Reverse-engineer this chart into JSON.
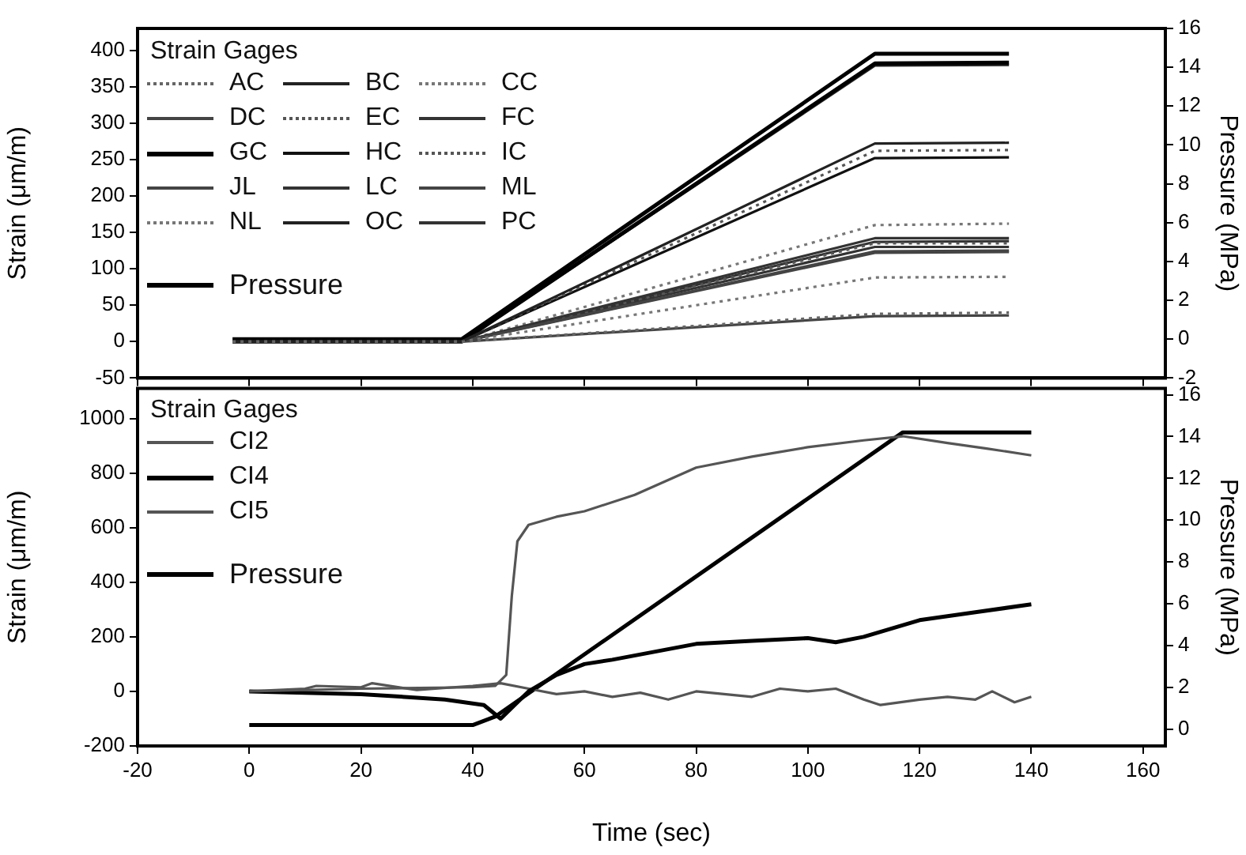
{
  "chart_data": [
    {
      "type": "line",
      "ylabel": "Strain (μm/m)",
      "y2label": "Pressure (MPa)",
      "legend_title": "Strain Gages",
      "legend": "top left",
      "grid": false,
      "tick_labels": "y",
      "xlim": [
        -20,
        164
      ],
      "xticks": [
        -20,
        0,
        20,
        40,
        60,
        80,
        100,
        120,
        140,
        160
      ],
      "ylim": [
        -50,
        430
      ],
      "yticks": [
        -50,
        0,
        50,
        100,
        150,
        200,
        250,
        300,
        350,
        400
      ],
      "y2lim": [
        -2,
        16
      ],
      "y2ticks": [
        -2,
        0,
        2,
        4,
        6,
        8,
        10,
        12,
        14,
        16
      ],
      "x": [
        -3,
        38,
        112,
        136
      ],
      "series": [
        {
          "name": "AC",
          "color": "#666666",
          "line_style": "dotted",
          "values": [
            0,
            0,
            38,
            40
          ]
        },
        {
          "name": "BC",
          "color": "#222222",
          "line_style": "solid",
          "values": [
            0,
            0,
            272,
            273
          ]
        },
        {
          "name": "CC",
          "color": "#777777",
          "line_style": "dotted",
          "values": [
            0,
            0,
            88,
            89
          ]
        },
        {
          "name": "DC",
          "color": "#444444",
          "line_style": "solid",
          "values": [
            0,
            0,
            124,
            125
          ]
        },
        {
          "name": "EC",
          "color": "#555555",
          "line_style": "dotted",
          "values": [
            0,
            0,
            262,
            263
          ]
        },
        {
          "name": "FC",
          "color": "#333333",
          "line_style": "solid",
          "values": [
            0,
            0,
            142,
            142
          ]
        },
        {
          "name": "GC",
          "color": "#000000",
          "line_style": "solid",
          "values": [
            0,
            0,
            382,
            383
          ]
        },
        {
          "name": "HC",
          "color": "#111111",
          "line_style": "solid",
          "values": [
            0,
            0,
            252,
            253
          ]
        },
        {
          "name": "IC",
          "color": "#555555",
          "line_style": "dotted",
          "values": [
            0,
            0,
            135,
            135
          ]
        },
        {
          "name": "JL",
          "color": "#444444",
          "line_style": "solid",
          "values": [
            0,
            0,
            122,
            123
          ]
        },
        {
          "name": "LC",
          "color": "#333333",
          "line_style": "solid",
          "values": [
            0,
            0,
            130,
            130
          ]
        },
        {
          "name": "ML",
          "color": "#444444",
          "line_style": "solid",
          "values": [
            0,
            0,
            35,
            36
          ]
        },
        {
          "name": "NL",
          "color": "#777777",
          "line_style": "dotted",
          "values": [
            0,
            0,
            160,
            162
          ]
        },
        {
          "name": "OC",
          "color": "#222222",
          "line_style": "solid",
          "values": [
            0,
            0,
            379,
            380
          ]
        },
        {
          "name": "PC",
          "color": "#333333",
          "line_style": "solid",
          "values": [
            0,
            0,
            137,
            138
          ]
        },
        {
          "name": "Pressure",
          "color": "#000000",
          "line_style": "solid",
          "axis": "y2",
          "values": [
            0,
            0,
            14.7,
            14.7
          ]
        }
      ]
    },
    {
      "type": "line",
      "xlabel": "Time (sec)",
      "ylabel": "Strain (μm/m)",
      "y2label": "Pressure (MPa)",
      "legend_title": "Strain Gages",
      "legend": "top left",
      "grid": false,
      "xlim": [
        -20,
        164
      ],
      "xticks": [
        -20,
        0,
        20,
        40,
        60,
        80,
        100,
        120,
        140,
        160
      ],
      "ylim": [
        -200,
        1110
      ],
      "yticks": [
        -200,
        0,
        200,
        400,
        600,
        800,
        1000
      ],
      "y2lim": [
        -0.8,
        16.3
      ],
      "y2ticks": [
        0,
        2,
        4,
        6,
        8,
        10,
        12,
        14,
        16
      ],
      "series": [
        {
          "name": "CI2",
          "color": "#555555",
          "line_style": "solid",
          "x": [
            0,
            20,
            40,
            44,
            46,
            47,
            48,
            50,
            55,
            60,
            69,
            80,
            90,
            100,
            110,
            117,
            125,
            132,
            140
          ],
          "values": [
            0,
            10,
            15,
            20,
            60,
            350,
            550,
            610,
            640,
            660,
            720,
            820,
            860,
            895,
            920,
            935,
            910,
            890,
            865
          ]
        },
        {
          "name": "CI4",
          "color": "#000000",
          "line_style": "solid",
          "x": [
            0,
            20,
            35,
            42,
            45,
            50,
            55,
            60,
            65,
            80,
            90,
            100,
            105,
            110,
            120,
            130,
            140
          ],
          "values": [
            0,
            -10,
            -30,
            -50,
            -100,
            0,
            60,
            100,
            116,
            174,
            185,
            195,
            180,
            200,
            261,
            290,
            319
          ]
        },
        {
          "name": "CI5",
          "color": "#555555",
          "line_style": "solid",
          "x": [
            0,
            10,
            12,
            20,
            22,
            30,
            40,
            45,
            50,
            55,
            60,
            65,
            70,
            75,
            80,
            85,
            90,
            95,
            100,
            105,
            110,
            113,
            120,
            125,
            130,
            133,
            137,
            140
          ],
          "values": [
            0,
            10,
            20,
            15,
            30,
            5,
            20,
            30,
            10,
            -10,
            0,
            -20,
            -5,
            -30,
            0,
            -10,
            -20,
            10,
            0,
            10,
            -30,
            -50,
            -30,
            -20,
            -30,
            0,
            -40,
            -20
          ]
        },
        {
          "name": "Pressure",
          "color": "#000000",
          "line_style": "solid",
          "axis": "y2",
          "x": [
            0,
            40,
            44,
            117,
            140
          ],
          "values": [
            0.2,
            0.2,
            0.6,
            14.2,
            14.2
          ]
        }
      ]
    }
  ]
}
